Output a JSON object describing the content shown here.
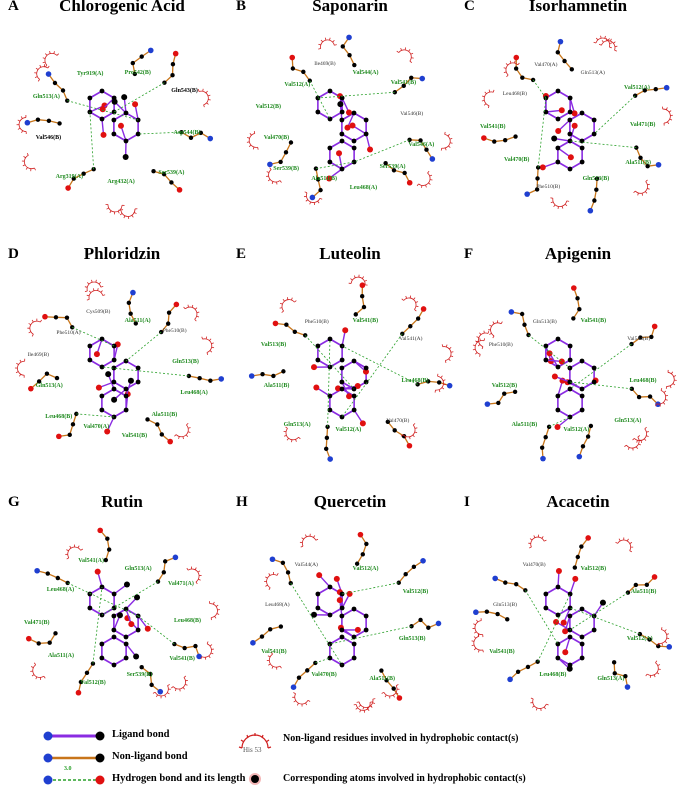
{
  "panels": [
    {
      "letter": "A",
      "title": "Chlorogenic Acid",
      "residues": [
        {
          "t": "Pro542(B)",
          "c": "g"
        },
        {
          "t": "Gln543(B)",
          "c": "b"
        },
        {
          "t": "Asp544(B)",
          "c": "g"
        },
        {
          "t": "Ser539(A)",
          "c": "g"
        },
        {
          "t": "Arg432(A)",
          "c": "g"
        },
        {
          "t": "Arg319(A)",
          "c": "g"
        },
        {
          "t": "Val546(B)",
          "c": "b"
        },
        {
          "t": "Gln513(A)",
          "c": "g"
        },
        {
          "t": "Tyr919(A)",
          "c": "g"
        }
      ]
    },
    {
      "letter": "B",
      "title": "Saponarin",
      "residues": [
        {
          "t": "Val544(A)",
          "c": "g"
        },
        {
          "t": "Val541(B)",
          "c": "g"
        },
        {
          "t": "Val546(B)",
          "c": "n"
        },
        {
          "t": "Val546(A)",
          "c": "g"
        },
        {
          "t": "Ser539(A)",
          "c": "g"
        },
        {
          "t": "Leu468(A)",
          "c": "g"
        },
        {
          "t": "Ala511(B)",
          "c": "g"
        },
        {
          "t": "Ser539(B)",
          "c": "g"
        },
        {
          "t": "Val470(B)",
          "c": "g"
        },
        {
          "t": "Val512(B)",
          "c": "g"
        },
        {
          "t": "Val512(A)",
          "c": "g"
        },
        {
          "t": "Ile469(B)",
          "c": "n"
        }
      ]
    },
    {
      "letter": "C",
      "title": "Isorhamnetin",
      "residues": [
        {
          "t": "Gln513(A)",
          "c": "n"
        },
        {
          "t": "Val512(A)",
          "c": "g"
        },
        {
          "t": "Val471(B)",
          "c": "g"
        },
        {
          "t": "Ala511(B)",
          "c": "g"
        },
        {
          "t": "Gln513(B)",
          "c": "g"
        },
        {
          "t": "Phe510(B)",
          "c": "n"
        },
        {
          "t": "Val470(B)",
          "c": "g"
        },
        {
          "t": "Val541(B)",
          "c": "g"
        },
        {
          "t": "Leu468(B)",
          "c": "n"
        },
        {
          "t": "Val470(A)",
          "c": "n"
        }
      ]
    },
    {
      "letter": "D",
      "title": "Phloridzin",
      "residues": [
        {
          "t": "Ala511(A)",
          "c": "g"
        },
        {
          "t": "Phe510(B)",
          "c": "n"
        },
        {
          "t": "Gln513(B)",
          "c": "g"
        },
        {
          "t": "Leu468(A)",
          "c": "g"
        },
        {
          "t": "Ala511(B)",
          "c": "g"
        },
        {
          "t": "Val541(B)",
          "c": "g"
        },
        {
          "t": "Val470(A)",
          "c": "g"
        },
        {
          "t": "Leu468(B)",
          "c": "g"
        },
        {
          "t": "Gln513(A)",
          "c": "g"
        },
        {
          "t": "Ile469(B)",
          "c": "n"
        },
        {
          "t": "Phe510(A)",
          "c": "n"
        },
        {
          "t": "Cys509(B)",
          "c": "n"
        }
      ]
    },
    {
      "letter": "E",
      "title": "Luteolin",
      "residues": [
        {
          "t": "Val541(B)",
          "c": "g"
        },
        {
          "t": "Val541(A)",
          "c": "n"
        },
        {
          "t": "Leu468(B)",
          "c": "g"
        },
        {
          "t": "Val470(B)",
          "c": "n"
        },
        {
          "t": "Val512(A)",
          "c": "g"
        },
        {
          "t": "Gln513(A)",
          "c": "g"
        },
        {
          "t": "Ala511(B)",
          "c": "g"
        },
        {
          "t": "Val513(B)",
          "c": "g"
        },
        {
          "t": "Phe510(B)",
          "c": "n"
        }
      ]
    },
    {
      "letter": "F",
      "title": "Apigenin",
      "residues": [
        {
          "t": "Val541(B)",
          "c": "g"
        },
        {
          "t": "Val544(B)",
          "c": "n"
        },
        {
          "t": "Leu468(B)",
          "c": "g"
        },
        {
          "t": "Gln513(A)",
          "c": "g"
        },
        {
          "t": "Val512(A)",
          "c": "g"
        },
        {
          "t": "Ala511(B)",
          "c": "g"
        },
        {
          "t": "Val512(B)",
          "c": "g"
        },
        {
          "t": "Phe510(B)",
          "c": "n"
        },
        {
          "t": "Gln513(B)",
          "c": "n"
        }
      ]
    },
    {
      "letter": "G",
      "title": "Rutin",
      "residues": [
        {
          "t": "Gln513(A)",
          "c": "g"
        },
        {
          "t": "Val471(A)",
          "c": "g"
        },
        {
          "t": "Leu468(B)",
          "c": "g"
        },
        {
          "t": "Val541(B)",
          "c": "g"
        },
        {
          "t": "Ser539(B)",
          "c": "g"
        },
        {
          "t": "Val512(B)",
          "c": "g"
        },
        {
          "t": "Ala511(A)",
          "c": "g"
        },
        {
          "t": "Val471(B)",
          "c": "g"
        },
        {
          "t": "Leu468(A)",
          "c": "g"
        },
        {
          "t": "Val541(A)",
          "c": "g"
        }
      ]
    },
    {
      "letter": "H",
      "title": "Quercetin",
      "residues": [
        {
          "t": "Val512(A)",
          "c": "g"
        },
        {
          "t": "Val512(B)",
          "c": "g"
        },
        {
          "t": "Gln513(B)",
          "c": "g"
        },
        {
          "t": "Ala511(B)",
          "c": "g"
        },
        {
          "t": "Val470(B)",
          "c": "g"
        },
        {
          "t": "Val541(B)",
          "c": "g"
        },
        {
          "t": "Leu468(A)",
          "c": "n"
        },
        {
          "t": "Val544(A)",
          "c": "n"
        }
      ]
    },
    {
      "letter": "I",
      "title": "Acacetin",
      "residues": [
        {
          "t": "Val512(B)",
          "c": "g"
        },
        {
          "t": "Ala511(B)",
          "c": "g"
        },
        {
          "t": "Val512(A)",
          "c": "g"
        },
        {
          "t": "Gln513(A)",
          "c": "g"
        },
        {
          "t": "Leu468(B)",
          "c": "g"
        },
        {
          "t": "Val541(B)",
          "c": "g"
        },
        {
          "t": "Gln513(B)",
          "c": "n"
        },
        {
          "t": "Val470(B)",
          "c": "n"
        }
      ]
    }
  ],
  "legend": {
    "ligand_bond": "Ligand bond",
    "non_ligand_bond": "Non-ligand bond",
    "hbond": "Hydrogen bond and its length",
    "hbond_length": "3.0",
    "hydrophobic_example": "His 53",
    "hydrophobic_residues": "Non-ligand residues involved in hydrophobic contact(s)",
    "hydrophobic_atoms": "Corresponding atoms involved in hydrophobic contact(s)"
  },
  "colors": {
    "ligand": "#8a2be2",
    "nonligand": "#c8751a",
    "hbond": "#2aa02a",
    "oxygen": "#e01010",
    "nitrogen": "#1f3fd0",
    "carbon": "#000000",
    "arc": "#d02020",
    "green_text": "#1f8a1f"
  }
}
